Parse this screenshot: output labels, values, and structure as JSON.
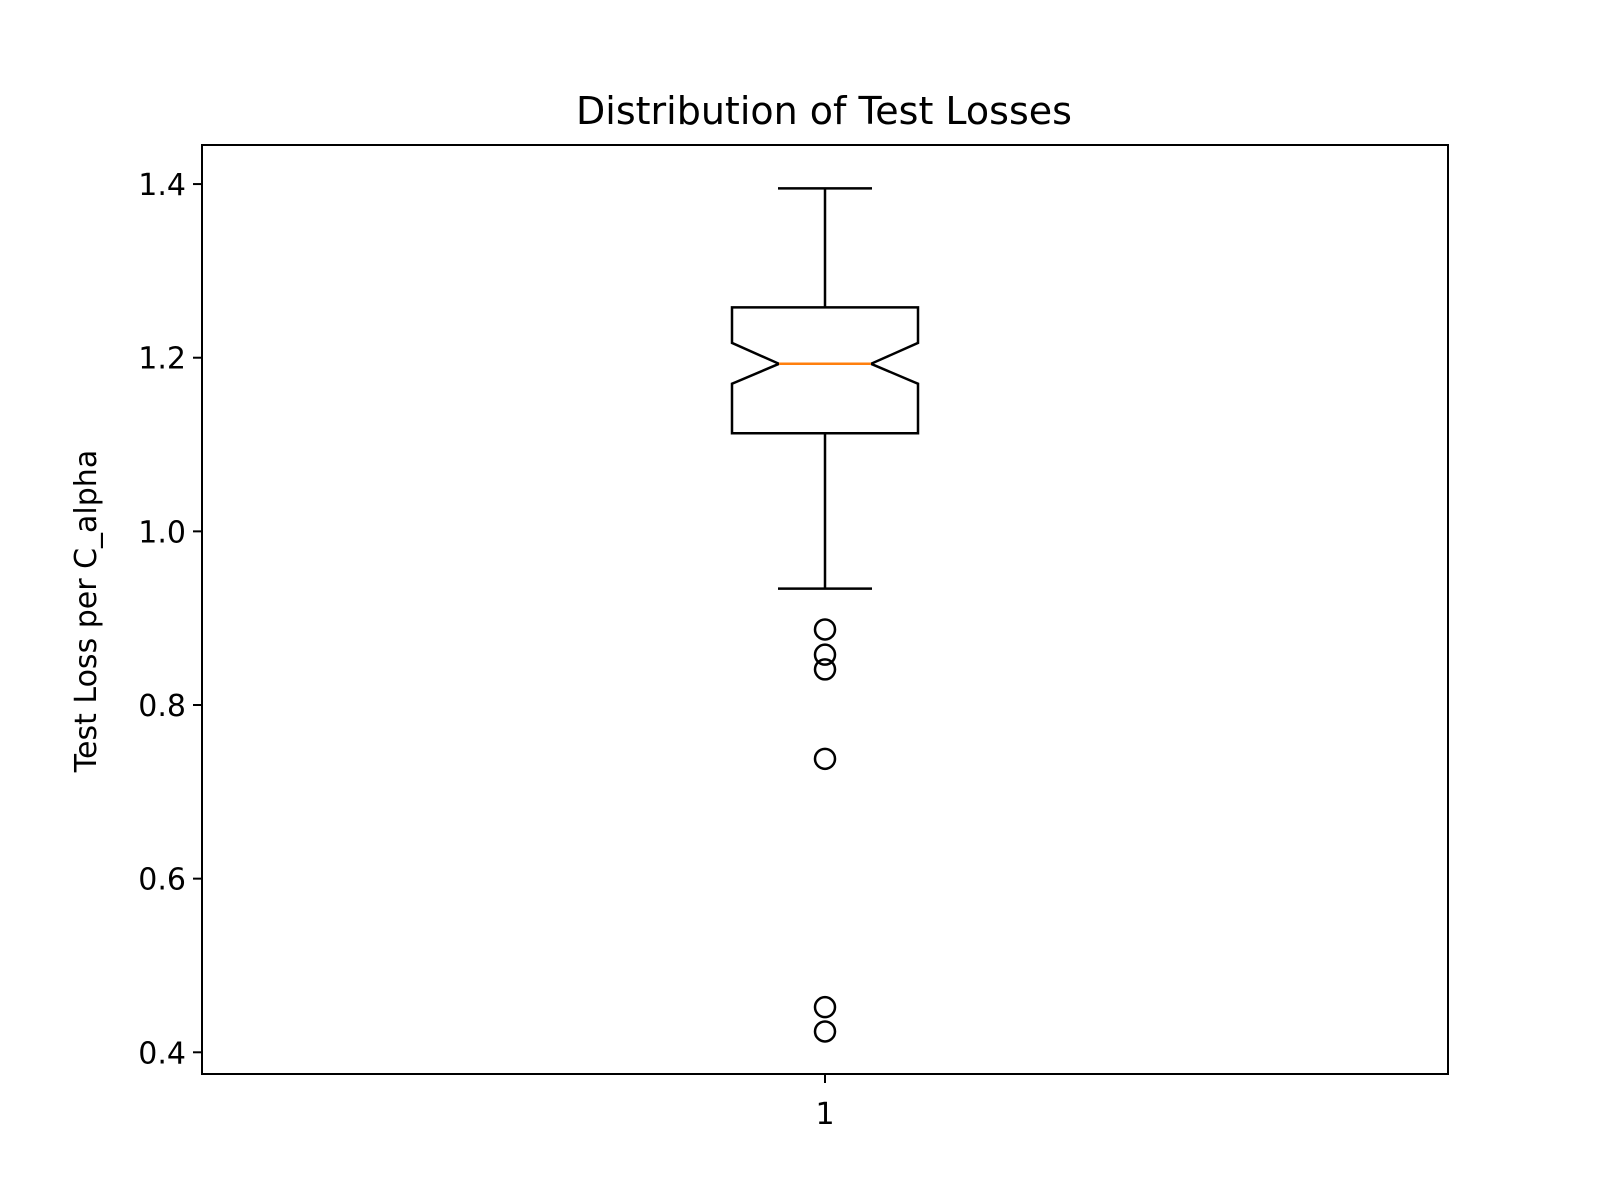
{
  "chart_data": {
    "type": "box",
    "title": "Distribution of Test Losses",
    "xlabel": "",
    "ylabel": "Test Loss per C_alpha",
    "categories": [
      "1"
    ],
    "yticks": [
      "0.4",
      "0.6",
      "0.8",
      "1.0",
      "1.2",
      "1.4"
    ],
    "ylim": [
      0.375,
      1.445
    ],
    "notched": true,
    "grid": false,
    "boxes": [
      {
        "category": "1",
        "q1": 1.113,
        "median": 1.193,
        "q3": 1.258,
        "notch_low": 1.17,
        "notch_high": 1.217,
        "whisker_low": 0.934,
        "whisker_high": 1.395,
        "outliers": [
          0.887,
          0.858,
          0.841,
          0.738,
          0.452,
          0.424
        ]
      }
    ],
    "colors": {
      "median": "#ff7f0e",
      "box": "#000000",
      "axes": "#000000"
    }
  }
}
